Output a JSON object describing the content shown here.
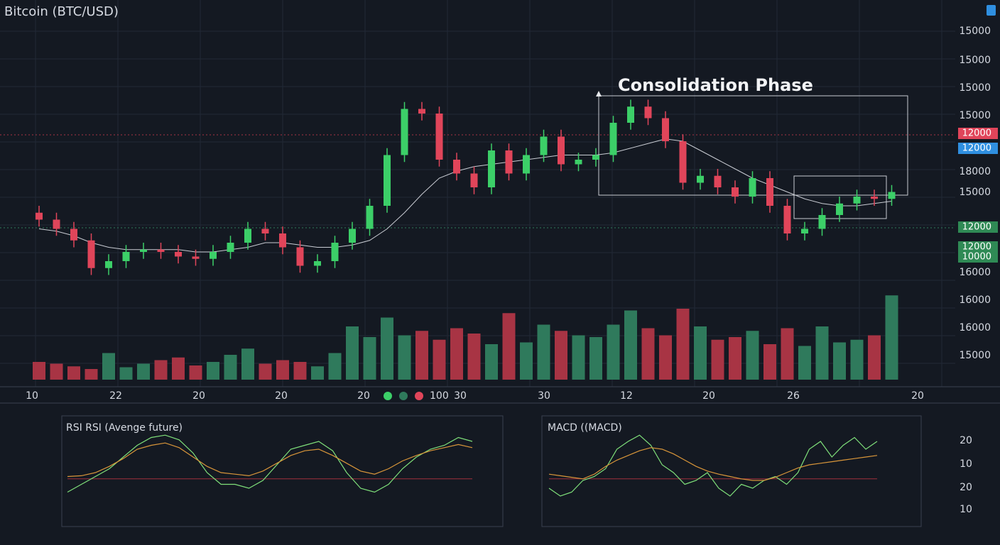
{
  "header": {
    "title": "Bitcoin (BTC/USD)"
  },
  "chart_data": {
    "type": "candlestick",
    "annotation": "Consolidation Phase",
    "ylim": [
      0,
      100
    ],
    "open": [
      37,
      34,
      30,
      25,
      13,
      16,
      20,
      21,
      20,
      18,
      17,
      20,
      24,
      30,
      28,
      22,
      14,
      16,
      24,
      30,
      40,
      62,
      82,
      80,
      60,
      54,
      48,
      64,
      54,
      62,
      70,
      58,
      60,
      62,
      76,
      83,
      78,
      68,
      50,
      53,
      48,
      44,
      52,
      40,
      28,
      30,
      36,
      41,
      44,
      43
    ],
    "high": [
      40,
      37,
      33,
      28,
      19,
      23,
      24,
      24,
      23,
      21,
      23,
      27,
      33,
      33,
      31,
      25,
      19,
      27,
      33,
      43,
      65,
      85,
      85,
      83,
      63,
      57,
      67,
      67,
      65,
      73,
      73,
      63,
      65,
      79,
      86,
      86,
      81,
      71,
      56,
      56,
      51,
      55,
      55,
      43,
      33,
      39,
      44,
      47,
      47,
      49
    ],
    "low": [
      31,
      27,
      22,
      10,
      10,
      13,
      17,
      17,
      15,
      14,
      14,
      17,
      21,
      25,
      19,
      11,
      11,
      13,
      21,
      27,
      37,
      59,
      77,
      57,
      51,
      45,
      45,
      51,
      51,
      59,
      55,
      55,
      57,
      59,
      73,
      75,
      65,
      47,
      47,
      45,
      41,
      41,
      37,
      25,
      25,
      27,
      33,
      38,
      40,
      40
    ],
    "close": [
      34,
      30,
      25,
      13,
      16,
      20,
      21,
      20,
      18,
      17,
      20,
      24,
      30,
      28,
      22,
      14,
      16,
      24,
      30,
      40,
      62,
      82,
      80,
      60,
      54,
      48,
      64,
      54,
      62,
      70,
      58,
      60,
      62,
      76,
      83,
      78,
      68,
      50,
      53,
      48,
      44,
      52,
      40,
      28,
      30,
      36,
      41,
      44,
      43,
      46
    ],
    "moving_average": [
      30,
      29,
      27,
      24,
      22,
      21,
      21,
      21,
      21,
      20,
      20,
      21,
      22,
      24,
      24,
      23,
      22,
      22,
      23,
      25,
      30,
      37,
      45,
      52,
      55,
      57,
      58,
      59,
      60,
      61,
      62,
      62,
      62,
      63,
      65,
      67,
      69,
      68,
      64,
      60,
      56,
      52,
      49,
      46,
      43,
      41,
      40,
      40,
      41,
      42
    ],
    "ma_color": "#c9ccd3",
    "volume": [
      20,
      18,
      15,
      12,
      30,
      14,
      18,
      22,
      25,
      16,
      20,
      28,
      35,
      18,
      22,
      20,
      15,
      30,
      60,
      48,
      70,
      50,
      55,
      45,
      58,
      52,
      40,
      75,
      42,
      62,
      55,
      50,
      48,
      62,
      78,
      58,
      50,
      80,
      60,
      45,
      48,
      55,
      40,
      58,
      38,
      60,
      42,
      45,
      50,
      95
    ],
    "volume_ylim": [
      0,
      100
    ],
    "up_color": "#3ccf68",
    "down_color": "#e0455a",
    "volume_up_color": "#2f7a5c",
    "volume_down_color": "#a83444"
  },
  "price_axis_labels": [
    "15000",
    "15000",
    "15000",
    "15000",
    "18000",
    "15000",
    "16000",
    "16000",
    "16000",
    "15000"
  ],
  "badges": [
    {
      "text": "12000",
      "color": "#e0455a"
    },
    {
      "text": "12000",
      "color": "#2f8fe0"
    },
    {
      "text": "12000",
      "color": "#2f8a55"
    },
    {
      "text": "12000",
      "color": "#2f8a55"
    },
    {
      "text": "10000",
      "color": "#2f8a55"
    }
  ],
  "time_axis_labels": [
    "10",
    "22",
    "20",
    "20",
    "20",
    "30",
    "30",
    "12",
    "20",
    "26",
    "20"
  ],
  "legend": {
    "label": "100",
    "colors": [
      "#3ccf68",
      "#2f7a5c",
      "#e0455a"
    ]
  },
  "panels": [
    {
      "title": "RSI RSI (Avenge future)",
      "ylim": [
        0,
        100
      ],
      "reference": 32,
      "reference_color": "#a0303c",
      "series": [
        {
          "color": "#7fe07a",
          "values": [
            15,
            25,
            35,
            45,
            60,
            75,
            85,
            88,
            82,
            65,
            40,
            25,
            25,
            20,
            30,
            50,
            70,
            75,
            80,
            68,
            40,
            20,
            15,
            25,
            45,
            60,
            70,
            75,
            85,
            80
          ]
        },
        {
          "color": "#d9963a",
          "values": [
            35,
            36,
            40,
            48,
            58,
            70,
            75,
            78,
            72,
            60,
            48,
            40,
            38,
            36,
            42,
            52,
            62,
            68,
            70,
            62,
            52,
            42,
            38,
            45,
            55,
            62,
            68,
            72,
            76,
            72
          ]
        }
      ]
    },
    {
      "title": "MACD ((MACD)",
      "ylim": [
        0,
        100
      ],
      "reference": 32,
      "reference_color": "#a0303c",
      "series": [
        {
          "color": "#7fe07a",
          "values": [
            20,
            10,
            15,
            30,
            35,
            45,
            70,
            80,
            88,
            75,
            50,
            40,
            25,
            30,
            40,
            20,
            10,
            25,
            20,
            30,
            35,
            25,
            40,
            70,
            80,
            60,
            75,
            85,
            70,
            80
          ]
        },
        {
          "color": "#d9963a",
          "values": [
            38,
            36,
            34,
            32,
            38,
            48,
            56,
            62,
            68,
            72,
            70,
            64,
            56,
            48,
            42,
            38,
            35,
            32,
            30,
            30,
            34,
            40,
            46,
            50,
            52,
            54,
            56,
            58,
            60,
            62
          ]
        }
      ]
    }
  ],
  "indicator_axis_labels": [
    "20",
    "10",
    "20",
    "10"
  ]
}
